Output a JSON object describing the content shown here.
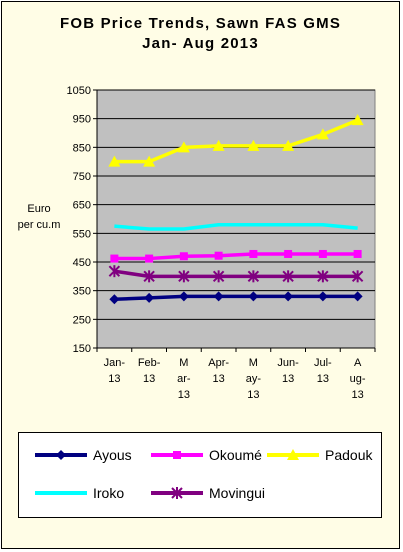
{
  "chart_data": {
    "type": "line",
    "title_lines": [
      "FOB Price Trends, Sawn FAS GMS",
      "Jan- Aug 2013"
    ],
    "ylabel_lines": [
      "Euro",
      "per cu.m"
    ],
    "xlabel": "",
    "ylim": [
      150,
      1050
    ],
    "yticks": [
      150,
      250,
      350,
      450,
      550,
      650,
      750,
      850,
      950,
      1050
    ],
    "ytick_labels": [
      "150",
      "250",
      "350",
      "450",
      "550",
      "650",
      "750",
      "850",
      "950",
      "1050"
    ],
    "grid": "horizontal",
    "plot_background": "#c0c0c0",
    "legend_position": "bottom",
    "categories": [
      [
        "Jan-",
        "13"
      ],
      [
        "Feb-",
        "13"
      ],
      [
        "M",
        "ar-",
        "13"
      ],
      [
        "Apr-",
        "13"
      ],
      [
        "M",
        "ay-",
        "13"
      ],
      [
        "Jun-",
        "13"
      ],
      [
        "Jul-",
        "13"
      ],
      [
        "A",
        "ug-",
        "13"
      ]
    ],
    "series": [
      {
        "name": "Ayous",
        "color": "#000080",
        "marker": "diamond",
        "values": [
          320,
          325,
          330,
          330,
          330,
          330,
          330,
          330
        ]
      },
      {
        "name": "Okoumé",
        "color": "#ff00ff",
        "marker": "square",
        "values": [
          462,
          462,
          470,
          472,
          478,
          478,
          478,
          478
        ]
      },
      {
        "name": "Padouk",
        "color": "#ffff00",
        "marker": "triangle",
        "values": [
          800,
          800,
          850,
          855,
          855,
          855,
          895,
          945
        ]
      },
      {
        "name": "Iroko",
        "color": "#00ffff",
        "marker": "none",
        "values": [
          575,
          565,
          565,
          580,
          580,
          580,
          580,
          568
        ]
      },
      {
        "name": "Movingui",
        "color": "#800080",
        "marker": "star",
        "values": [
          418,
          400,
          400,
          400,
          400,
          400,
          400,
          400
        ]
      }
    ]
  }
}
